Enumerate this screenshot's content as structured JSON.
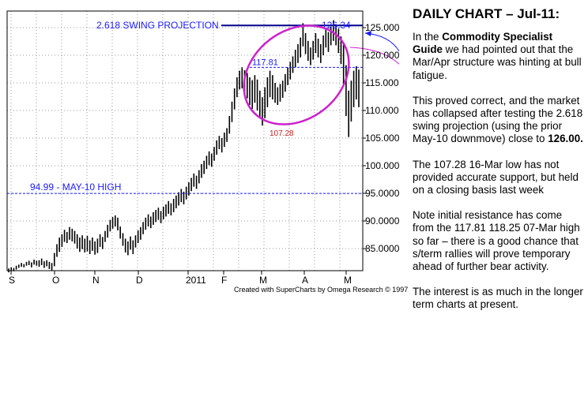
{
  "chart_data": {
    "type": "bar",
    "subtype": "ohlc-daily-price",
    "x_tick_labels": [
      "S",
      "O",
      "N",
      "D",
      "2011",
      "F",
      "M",
      "A",
      "M"
    ],
    "y_tick_labels": [
      "85.0000",
      "90.0000",
      "95.0000",
      "100.000",
      "105.000",
      "110.000",
      "115.000",
      "120.000",
      "125.000"
    ],
    "y_ticks": [
      85,
      90,
      95,
      100,
      105,
      110,
      115,
      120,
      125
    ],
    "ylim": [
      81,
      128
    ],
    "grid": true,
    "bars": [
      {
        "h": 81.4,
        "l": 80.7
      },
      {
        "h": 81.6,
        "l": 80.9
      },
      {
        "h": 81.5,
        "l": 80.9
      },
      {
        "h": 81.9,
        "l": 81.2
      },
      {
        "h": 82.1,
        "l": 81.5
      },
      {
        "h": 82.4,
        "l": 81.7
      },
      {
        "h": 82.2,
        "l": 81.6
      },
      {
        "h": 82.6,
        "l": 81.9
      },
      {
        "h": 82.8,
        "l": 82.0
      },
      {
        "h": 82.5,
        "l": 81.6
      },
      {
        "h": 83.0,
        "l": 82.1
      },
      {
        "h": 82.8,
        "l": 81.9
      },
      {
        "h": 82.9,
        "l": 81.7
      },
      {
        "h": 83.2,
        "l": 82.0
      },
      {
        "h": 82.7,
        "l": 81.5
      },
      {
        "h": 82.9,
        "l": 81.8
      },
      {
        "h": 82.6,
        "l": 81.3
      },
      {
        "h": 82.4,
        "l": 81.0
      },
      {
        "h": 84.2,
        "l": 81.8
      },
      {
        "h": 85.8,
        "l": 83.5
      },
      {
        "h": 87.0,
        "l": 84.4
      },
      {
        "h": 87.6,
        "l": 85.3
      },
      {
        "h": 88.4,
        "l": 86.2
      },
      {
        "h": 88.0,
        "l": 86.0
      },
      {
        "h": 88.9,
        "l": 86.6
      },
      {
        "h": 88.6,
        "l": 86.3
      },
      {
        "h": 88.2,
        "l": 85.9
      },
      {
        "h": 87.6,
        "l": 85.0
      },
      {
        "h": 87.0,
        "l": 84.4
      },
      {
        "h": 87.4,
        "l": 84.9
      },
      {
        "h": 86.8,
        "l": 84.3
      },
      {
        "h": 87.3,
        "l": 84.5
      },
      {
        "h": 86.5,
        "l": 84.0
      },
      {
        "h": 87.0,
        "l": 84.6
      },
      {
        "h": 86.3,
        "l": 83.9
      },
      {
        "h": 86.8,
        "l": 84.2
      },
      {
        "h": 87.6,
        "l": 85.3
      },
      {
        "h": 87.1,
        "l": 84.9
      },
      {
        "h": 88.2,
        "l": 86.2
      },
      {
        "h": 89.3,
        "l": 87.0
      },
      {
        "h": 90.2,
        "l": 88.1
      },
      {
        "h": 90.7,
        "l": 88.6
      },
      {
        "h": 91.0,
        "l": 89.0
      },
      {
        "h": 90.6,
        "l": 88.3
      },
      {
        "h": 89.0,
        "l": 86.8
      },
      {
        "h": 87.8,
        "l": 85.5
      },
      {
        "h": 86.8,
        "l": 84.3
      },
      {
        "h": 86.3,
        "l": 83.8
      },
      {
        "h": 87.2,
        "l": 84.8
      },
      {
        "h": 86.5,
        "l": 84.0
      },
      {
        "h": 87.4,
        "l": 85.2
      },
      {
        "h": 88.3,
        "l": 86.0
      },
      {
        "h": 88.9,
        "l": 86.6
      },
      {
        "h": 89.8,
        "l": 87.6
      },
      {
        "h": 90.6,
        "l": 88.4
      },
      {
        "h": 91.2,
        "l": 89.0
      },
      {
        "h": 90.8,
        "l": 88.7
      },
      {
        "h": 91.6,
        "l": 89.3
      },
      {
        "h": 92.0,
        "l": 89.8
      },
      {
        "h": 92.4,
        "l": 90.2
      },
      {
        "h": 91.8,
        "l": 89.6
      },
      {
        "h": 92.6,
        "l": 90.3
      },
      {
        "h": 93.0,
        "l": 90.8
      },
      {
        "h": 93.6,
        "l": 91.3
      },
      {
        "h": 93.2,
        "l": 91.0
      },
      {
        "h": 94.0,
        "l": 91.6
      },
      {
        "h": 94.6,
        "l": 92.3
      },
      {
        "h": 95.2,
        "l": 92.8
      },
      {
        "h": 95.8,
        "l": 93.4
      },
      {
        "h": 95.3,
        "l": 93.0
      },
      {
        "h": 96.2,
        "l": 93.9
      },
      {
        "h": 97.0,
        "l": 94.6
      },
      {
        "h": 97.8,
        "l": 95.4
      },
      {
        "h": 98.6,
        "l": 96.2
      },
      {
        "h": 98.2,
        "l": 95.8
      },
      {
        "h": 99.2,
        "l": 96.8
      },
      {
        "h": 100.3,
        "l": 97.8
      },
      {
        "h": 100.9,
        "l": 98.5
      },
      {
        "h": 101.8,
        "l": 99.4
      },
      {
        "h": 102.6,
        "l": 100.1
      },
      {
        "h": 102.2,
        "l": 99.8
      },
      {
        "h": 103.4,
        "l": 100.9
      },
      {
        "h": 104.6,
        "l": 102.0
      },
      {
        "h": 105.4,
        "l": 103.0
      },
      {
        "h": 105.0,
        "l": 102.4
      },
      {
        "h": 106.0,
        "l": 103.4
      },
      {
        "h": 106.8,
        "l": 104.3
      },
      {
        "h": 109.0,
        "l": 105.8
      },
      {
        "h": 111.6,
        "l": 107.9
      },
      {
        "h": 114.0,
        "l": 110.2
      },
      {
        "h": 116.0,
        "l": 112.4
      },
      {
        "h": 117.2,
        "l": 113.8
      },
      {
        "h": 117.81,
        "l": 114.0
      },
      {
        "h": 117.3,
        "l": 113.2
      },
      {
        "h": 116.8,
        "l": 112.2
      },
      {
        "h": 116.0,
        "l": 111.0
      },
      {
        "h": 115.5,
        "l": 110.3
      },
      {
        "h": 116.4,
        "l": 111.4
      },
      {
        "h": 115.6,
        "l": 110.0
      },
      {
        "h": 113.6,
        "l": 108.8
      },
      {
        "h": 112.4,
        "l": 107.28
      },
      {
        "h": 114.2,
        "l": 108.6
      },
      {
        "h": 116.0,
        "l": 110.6
      },
      {
        "h": 117.2,
        "l": 112.4
      },
      {
        "h": 116.4,
        "l": 112.0
      },
      {
        "h": 115.0,
        "l": 111.4
      },
      {
        "h": 114.2,
        "l": 111.0
      },
      {
        "h": 114.8,
        "l": 111.6
      },
      {
        "h": 115.4,
        "l": 112.3
      },
      {
        "h": 116.6,
        "l": 113.4
      },
      {
        "h": 117.8,
        "l": 114.6
      },
      {
        "h": 118.8,
        "l": 115.6
      },
      {
        "h": 119.8,
        "l": 116.8
      },
      {
        "h": 121.0,
        "l": 117.8
      },
      {
        "h": 122.0,
        "l": 118.6
      },
      {
        "h": 123.2,
        "l": 119.6
      },
      {
        "h": 125.8,
        "l": 121.6
      },
      {
        "h": 124.0,
        "l": 120.2
      },
      {
        "h": 122.6,
        "l": 119.0
      },
      {
        "h": 121.4,
        "l": 118.2
      },
      {
        "h": 122.6,
        "l": 119.2
      },
      {
        "h": 124.0,
        "l": 120.4
      },
      {
        "h": 123.0,
        "l": 119.6
      },
      {
        "h": 122.0,
        "l": 118.6
      },
      {
        "h": 123.6,
        "l": 120.0
      },
      {
        "h": 125.0,
        "l": 121.4
      },
      {
        "h": 124.2,
        "l": 120.6
      },
      {
        "h": 125.2,
        "l": 121.8
      },
      {
        "h": 126.34,
        "l": 122.6
      },
      {
        "h": 125.6,
        "l": 121.8
      },
      {
        "h": 124.8,
        "l": 120.4
      },
      {
        "h": 123.4,
        "l": 118.4
      },
      {
        "h": 122.2,
        "l": 114.6
      },
      {
        "h": 118.2,
        "l": 109.0
      },
      {
        "h": 113.6,
        "l": 105.2
      },
      {
        "h": 115.4,
        "l": 108.0
      },
      {
        "h": 117.2,
        "l": 110.6
      },
      {
        "h": 118.0,
        "l": 112.0
      },
      {
        "h": 117.4,
        "l": 110.6
      }
    ],
    "annotations": {
      "projection_label": "2.618 SWING PROJECTION",
      "projection_level": 125.4,
      "may10_label": "94.99  -  MAY-10 HIGH",
      "may10_level": 94.99,
      "high_117": "117.81",
      "high_126": "126.34",
      "low_107": "107.28"
    }
  },
  "credit": "Created with SuperCharts by Omega Research © 1997",
  "colors": {
    "bars": "#000000",
    "annotation_blue": "#1a1aff",
    "projection_line": "#00008b",
    "ellipse": "#cc22cc",
    "low_label": "#cc2222",
    "grid": "#9a9a9a"
  },
  "commentary": {
    "title": "DAILY CHART – Jul-11:",
    "p1": {
      "pre": "In the ",
      "bold": "Commodity Specialist Guide",
      "post": " we had pointed out that the Mar/Apr structure was hinting at bull fatigue."
    },
    "p2": {
      "pre": "This proved correct, and the market has collapsed after testing the 2.618 swing projection (using the prior May-10 downmove) close to ",
      "bold": "126.00."
    },
    "p3": "The 107.28 16-Mar low has not provided accurate support, but held on a closing basis last week",
    "p4": "Note initial resistance has come from the 117.81 118.25 07-Mar high so far – there is a good chance that s/term rallies will prove temporary ahead of further bear activity.",
    "p5": "The interest is as much in the longer term charts at present."
  }
}
